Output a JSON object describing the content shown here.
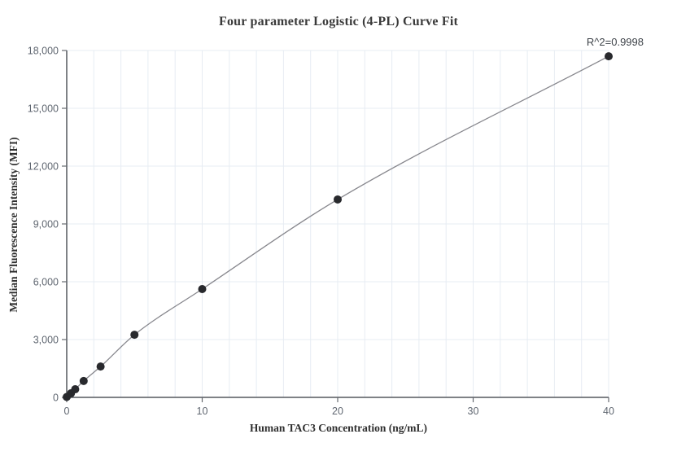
{
  "chart_data": {
    "type": "scatter",
    "title": "Four parameter Logistic (4-PL) Curve Fit",
    "xlabel": "Human TAC3 Concentration (ng/mL)",
    "ylabel": "Median Fluorescence Intensity (MFI)",
    "annotation": "R^2=0.9998",
    "fit_type": "4PL curve through points",
    "xlim": [
      0,
      40
    ],
    "ylim": [
      0,
      18000
    ],
    "x_ticks": [
      0,
      10,
      20,
      30,
      40
    ],
    "x_tick_labels": [
      "0",
      "10",
      "20",
      "30",
      "40"
    ],
    "y_ticks": [
      0,
      3000,
      6000,
      9000,
      12000,
      15000,
      18000
    ],
    "y_tick_labels": [
      "0",
      "3,000",
      "6,000",
      "9,000",
      "12,000",
      "15,000",
      "18,000"
    ],
    "grid": {
      "vertical_minor_step": 2,
      "horizontal_step": 3000,
      "grid_on": true,
      "legend": "none"
    },
    "points": [
      {
        "x": 0,
        "y": 20
      },
      {
        "x": 0.3125,
        "y": 210
      },
      {
        "x": 0.625,
        "y": 420
      },
      {
        "x": 1.25,
        "y": 850
      },
      {
        "x": 2.5,
        "y": 1600
      },
      {
        "x": 5,
        "y": 3250
      },
      {
        "x": 10,
        "y": 5620
      },
      {
        "x": 20,
        "y": 10270
      },
      {
        "x": 40,
        "y": 17700
      }
    ]
  },
  "colors": {
    "background": "#ffffff",
    "title_text": "#3a3a3a",
    "axis_line": "#55585e",
    "tick_mark": "#666a70",
    "tick_label": "#5f6670",
    "gridline": "#e7ecf3",
    "curve_line": "#87878d",
    "data_point": "#28292d",
    "annotation_text": "#3f444a"
  }
}
